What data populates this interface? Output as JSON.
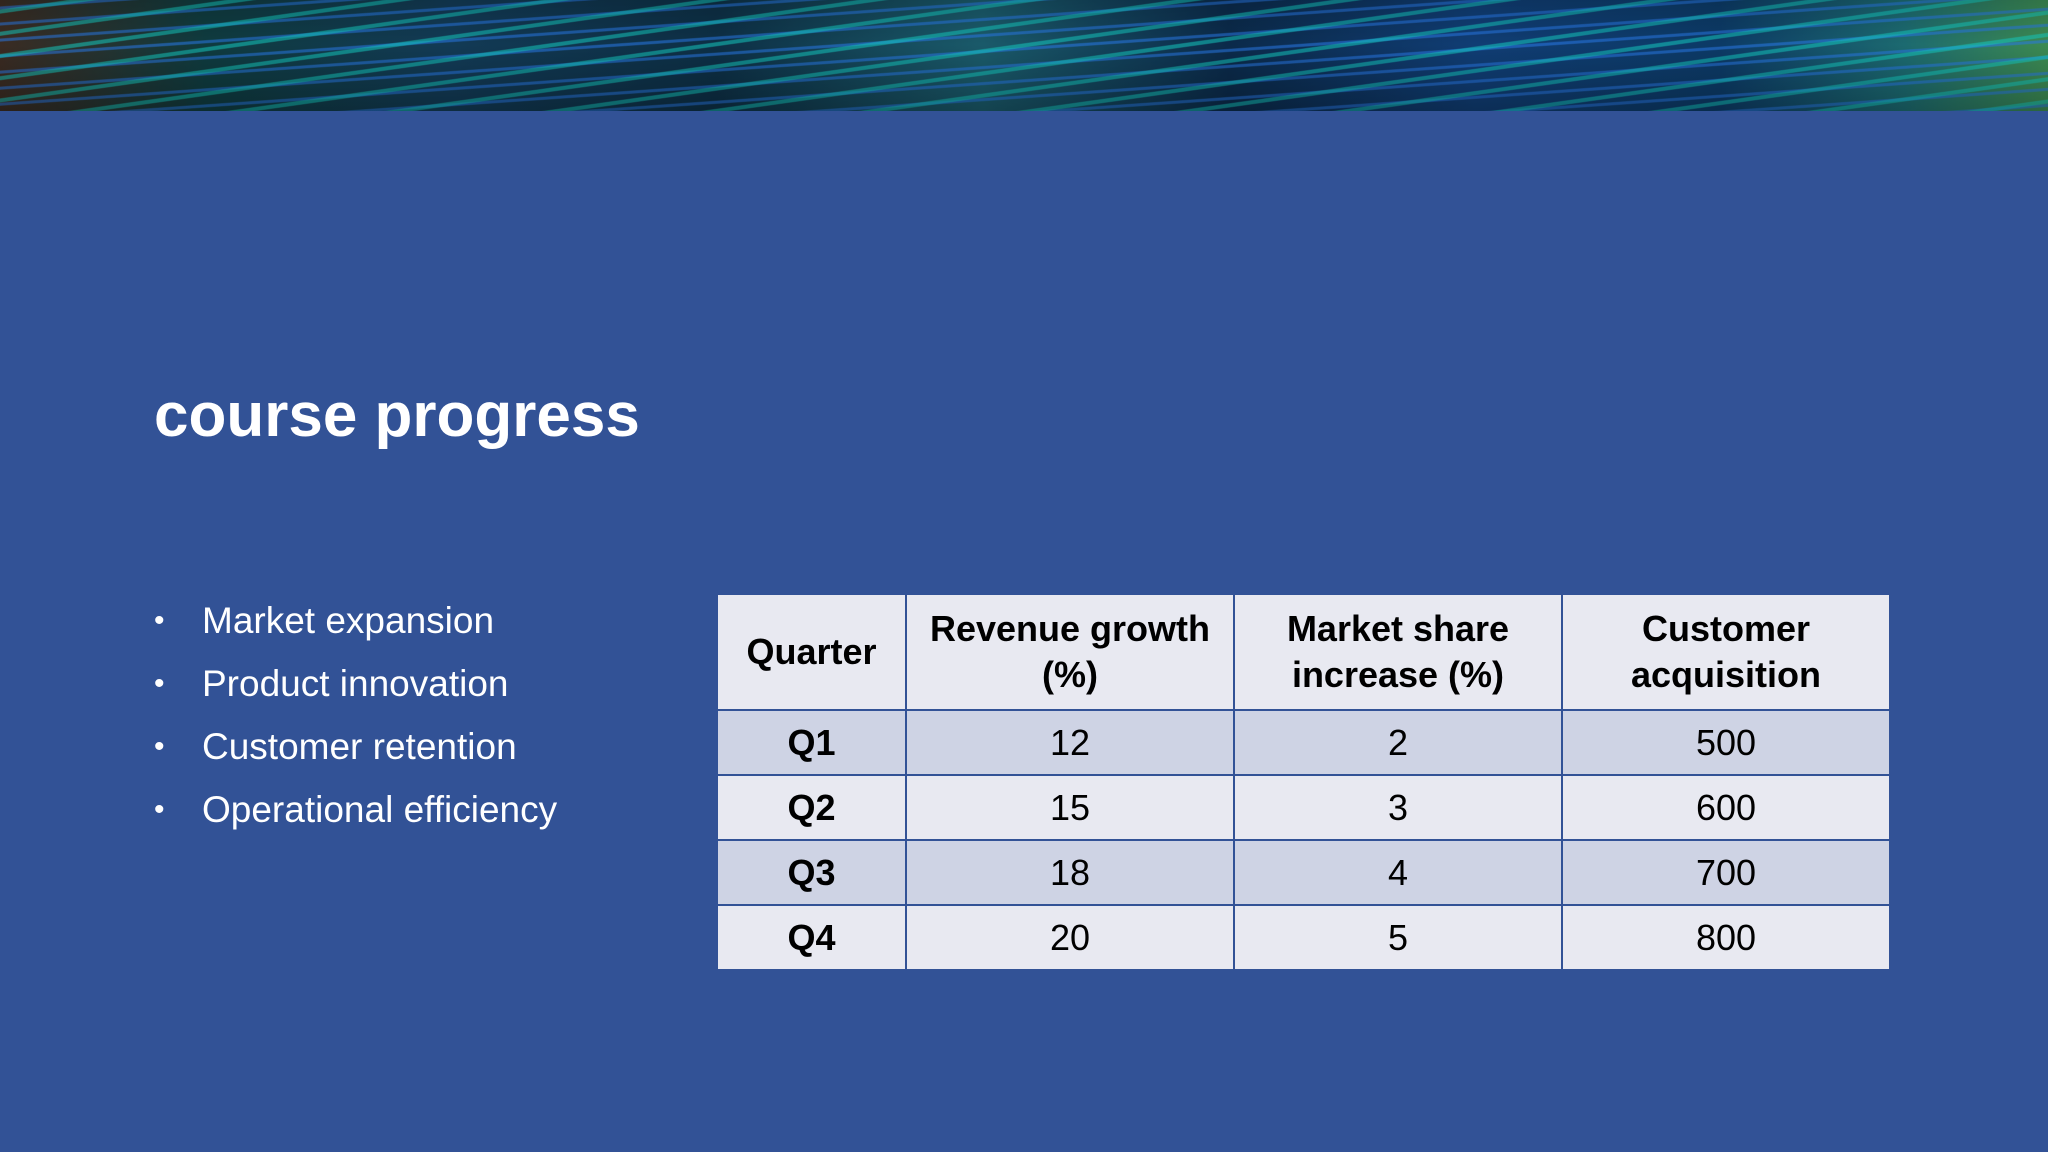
{
  "slide": {
    "title": "course progress",
    "bullets": [
      "Market expansion",
      "Product innovation",
      "Customer retention",
      "Operational efficiency"
    ],
    "bullet_symbol": "•",
    "table": {
      "headers": [
        "Quarter",
        "Revenue growth (%)",
        "Market share increase (%)",
        "Customer acquisition"
      ],
      "rows": [
        [
          "Q1",
          "12",
          "2",
          "500"
        ],
        [
          "Q2",
          "15",
          "3",
          "600"
        ],
        [
          "Q3",
          "18",
          "4",
          "700"
        ],
        [
          "Q4",
          "20",
          "5",
          "800"
        ]
      ]
    }
  },
  "colors": {
    "background": "#325296",
    "header_fill": "#e8e9f1",
    "band_dark": "#ced3e4",
    "band_light": "#e8e9f1",
    "text_light": "#ffffff",
    "text_dark": "#000000"
  }
}
